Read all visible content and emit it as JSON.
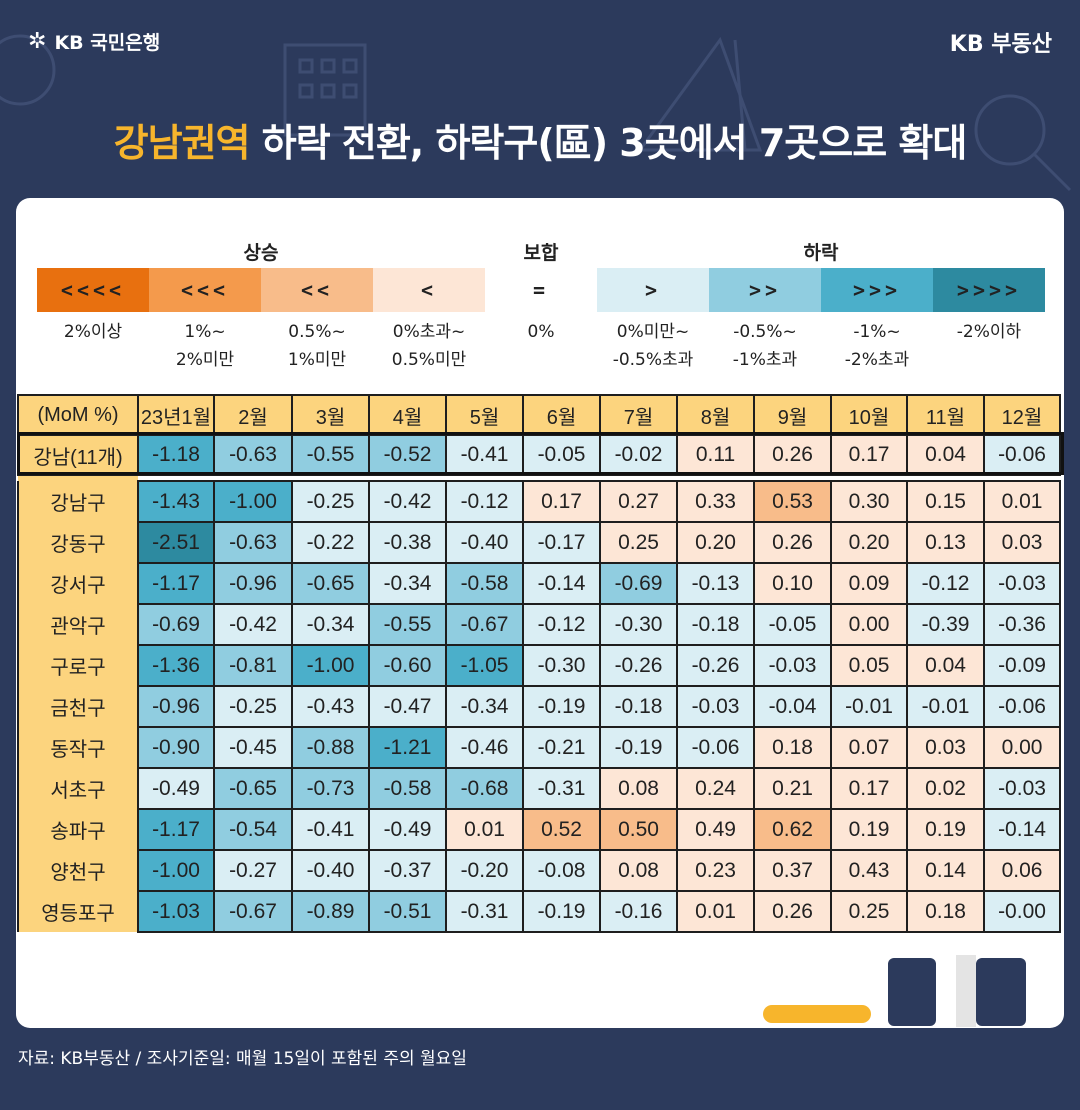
{
  "brand": {
    "bank_logo": "KB 국민은행",
    "real_estate": "KB 부동산",
    "logo_icon": "kb-star-icon"
  },
  "headline": {
    "highlight": "강남권역",
    "rest": " 하락 전환, 하락구(區) 3곳에서 7곳으로 확대"
  },
  "legend": {
    "groups": {
      "up": "상승",
      "flat": "보합",
      "down": "하락"
    },
    "items": [
      {
        "symbol": "<<<<",
        "range": "2%이상",
        "color": "#e8700f"
      },
      {
        "symbol": "<<<",
        "range": "1%~\n2%미만",
        "color": "#f49a4c"
      },
      {
        "symbol": "<<",
        "range": "0.5%~\n1%미만",
        "color": "#f8bc8a"
      },
      {
        "symbol": "<",
        "range": "0%초과~\n0.5%미만",
        "color": "#fde6d6"
      },
      {
        "symbol": "=",
        "range": "0%",
        "color": "#ffffff"
      },
      {
        "symbol": ">",
        "range": "0%미만~\n-0.5%초과",
        "color": "#daeef4"
      },
      {
        "symbol": ">>",
        "range": "-0.5%~\n-1%초과",
        "color": "#90cde0"
      },
      {
        "symbol": ">>>",
        "range": "-1%~\n-2%초과",
        "color": "#4bafca"
      },
      {
        "symbol": ">>>>",
        "range": "-2%이하",
        "color": "#2d8aa0"
      }
    ]
  },
  "chart_data": {
    "type": "table",
    "corner_label": "(MoM %)",
    "columns": [
      "23년1월",
      "2월",
      "3월",
      "4월",
      "5월",
      "6월",
      "7월",
      "8월",
      "9월",
      "10월",
      "11월",
      "12월"
    ],
    "summary_row": {
      "name": "강남(11개)",
      "values": [
        "-1.18",
        "-0.63",
        "-0.55",
        "-0.52",
        "-0.41",
        "-0.05",
        "-0.02",
        "0.11",
        "0.26",
        "0.17",
        "0.04",
        "-0.06"
      ]
    },
    "rows": [
      {
        "name": "강남구",
        "values": [
          "-1.43",
          "-1.00",
          "-0.25",
          "-0.42",
          "-0.12",
          "0.17",
          "0.27",
          "0.33",
          "0.53",
          "0.30",
          "0.15",
          "0.01"
        ]
      },
      {
        "name": "강동구",
        "values": [
          "-2.51",
          "-0.63",
          "-0.22",
          "-0.38",
          "-0.40",
          "-0.17",
          "0.25",
          "0.20",
          "0.26",
          "0.20",
          "0.13",
          "0.03"
        ]
      },
      {
        "name": "강서구",
        "values": [
          "-1.17",
          "-0.96",
          "-0.65",
          "-0.34",
          "-0.58",
          "-0.14",
          "-0.69",
          "-0.13",
          "0.10",
          "0.09",
          "-0.12",
          "-0.03"
        ]
      },
      {
        "name": "관악구",
        "values": [
          "-0.69",
          "-0.42",
          "-0.34",
          "-0.55",
          "-0.67",
          "-0.12",
          "-0.30",
          "-0.18",
          "-0.05",
          "0.00",
          "-0.39",
          "-0.36"
        ]
      },
      {
        "name": "구로구",
        "values": [
          "-1.36",
          "-0.81",
          "-1.00",
          "-0.60",
          "-1.05",
          "-0.30",
          "-0.26",
          "-0.26",
          "-0.03",
          "0.05",
          "0.04",
          "-0.09"
        ]
      },
      {
        "name": "금천구",
        "values": [
          "-0.96",
          "-0.25",
          "-0.43",
          "-0.47",
          "-0.34",
          "-0.19",
          "-0.18",
          "-0.03",
          "-0.04",
          "-0.01",
          "-0.01",
          "-0.06"
        ]
      },
      {
        "name": "동작구",
        "values": [
          "-0.90",
          "-0.45",
          "-0.88",
          "-1.21",
          "-0.46",
          "-0.21",
          "-0.19",
          "-0.06",
          "0.18",
          "0.07",
          "0.03",
          "0.00"
        ]
      },
      {
        "name": "서초구",
        "values": [
          "-0.49",
          "-0.65",
          "-0.73",
          "-0.58",
          "-0.68",
          "-0.31",
          "0.08",
          "0.24",
          "0.21",
          "0.17",
          "0.02",
          "-0.03"
        ]
      },
      {
        "name": "송파구",
        "values": [
          "-1.17",
          "-0.54",
          "-0.41",
          "-0.49",
          "0.01",
          "0.52",
          "0.50",
          "0.49",
          "0.62",
          "0.19",
          "0.19",
          "-0.14"
        ]
      },
      {
        "name": "양천구",
        "values": [
          "-1.00",
          "-0.27",
          "-0.40",
          "-0.37",
          "-0.20",
          "-0.08",
          "0.08",
          "0.23",
          "0.37",
          "0.43",
          "0.14",
          "0.06"
        ]
      },
      {
        "name": "영등포구",
        "values": [
          "-1.03",
          "-0.67",
          "-0.89",
          "-0.51",
          "-0.31",
          "-0.19",
          "-0.16",
          "0.01",
          "0.26",
          "0.25",
          "0.18",
          "-0.00"
        ]
      }
    ]
  },
  "footer": {
    "source": "자료: KB부동산 / 조사기준일: 매월 15일이 포함된 주의 월요일"
  }
}
